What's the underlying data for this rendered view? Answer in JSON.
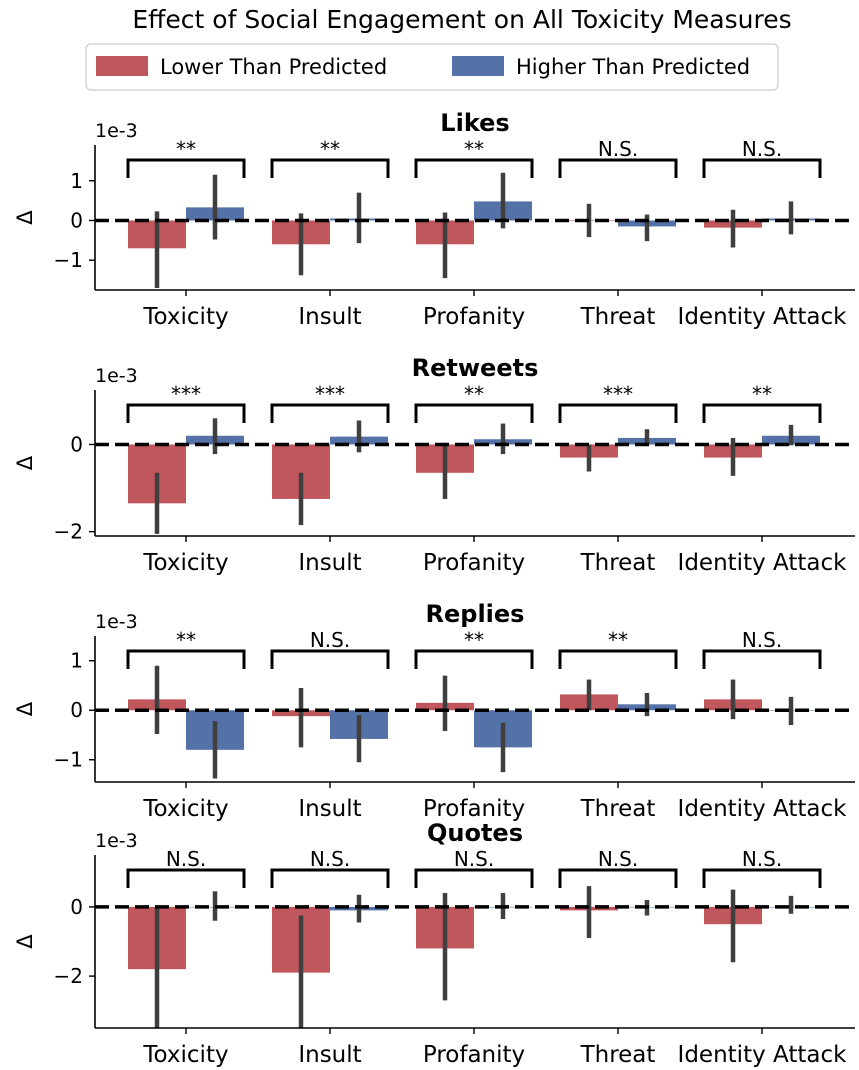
{
  "colors": {
    "lower": "#c0575d",
    "higher": "#5572a8",
    "errorbar": "#3f3f3f"
  },
  "chart_data": {
    "type": "bar",
    "title": "Effect of Social Engagement on All Toxicity Measures",
    "legend": {
      "placement": "top-center",
      "entries": [
        "Lower Than Predicted",
        "Higher Than Predicted"
      ]
    },
    "ylabel": "Δ",
    "y_offset_label": "1e-3",
    "categories": [
      "Toxicity",
      "Insult",
      "Profanity",
      "Threat",
      "Identity Attack"
    ],
    "panels": [
      {
        "title": "Likes",
        "ylim": [
          -1.75,
          1.9
        ],
        "yticks": [
          -1,
          0,
          1
        ],
        "ytick_labels": [
          "−1",
          "0",
          "1"
        ],
        "series": [
          {
            "name": "Lower Than Predicted",
            "values": [
              -0.7,
              -0.6,
              -0.6,
              0.0,
              -0.18
            ],
            "err_low": [
              -1.7,
              -1.38,
              -1.45,
              -0.42,
              -0.68
            ],
            "err_high": [
              0.23,
              0.18,
              0.2,
              0.42,
              0.27
            ]
          },
          {
            "name": "Higher Than Predicted",
            "values": [
              0.33,
              0.05,
              0.48,
              -0.15,
              0.05
            ],
            "err_low": [
              -0.48,
              -0.57,
              -0.2,
              -0.52,
              -0.35
            ],
            "err_high": [
              1.15,
              0.7,
              1.2,
              0.15,
              0.48
            ]
          }
        ],
        "significance": [
          "**",
          "**",
          "**",
          "N.S.",
          "N.S."
        ]
      },
      {
        "title": "Retweets",
        "ylim": [
          -2.1,
          1.25
        ],
        "yticks": [
          -2,
          0
        ],
        "ytick_labels": [
          "−2",
          "0"
        ],
        "series": [
          {
            "name": "Lower Than Predicted",
            "values": [
              -1.35,
              -1.25,
              -0.65,
              -0.3,
              -0.3
            ],
            "err_low": [
              -2.05,
              -1.85,
              -1.25,
              -0.62,
              -0.72
            ],
            "err_high": [
              -0.65,
              -0.65,
              -0.02,
              0.0,
              0.15
            ]
          },
          {
            "name": "Higher Than Predicted",
            "values": [
              0.2,
              0.18,
              0.12,
              0.15,
              0.2
            ],
            "err_low": [
              -0.22,
              -0.18,
              -0.22,
              -0.02,
              -0.02
            ],
            "err_high": [
              0.6,
              0.55,
              0.48,
              0.35,
              0.45
            ]
          }
        ],
        "significance": [
          "***",
          "***",
          "**",
          "***",
          "**"
        ]
      },
      {
        "title": "Replies",
        "ylim": [
          -1.45,
          1.5
        ],
        "yticks": [
          -1,
          0,
          1
        ],
        "ytick_labels": [
          "−1",
          "0",
          "1"
        ],
        "series": [
          {
            "name": "Lower Than Predicted",
            "values": [
              0.22,
              -0.12,
              0.15,
              0.32,
              0.22
            ],
            "err_low": [
              -0.48,
              -0.75,
              -0.42,
              0.0,
              -0.18
            ],
            "err_high": [
              0.9,
              0.45,
              0.7,
              0.62,
              0.62
            ]
          },
          {
            "name": "Higher Than Predicted",
            "values": [
              -0.8,
              -0.58,
              -0.75,
              0.12,
              0.0
            ],
            "err_low": [
              -1.38,
              -1.05,
              -1.25,
              -0.12,
              -0.3
            ],
            "err_high": [
              -0.22,
              -0.1,
              -0.25,
              0.35,
              0.27
            ]
          }
        ],
        "significance": [
          "**",
          "N.S.",
          "**",
          "**",
          "N.S."
        ]
      },
      {
        "title": "Quotes",
        "ylim": [
          -3.5,
          1.5
        ],
        "yticks": [
          -2,
          0
        ],
        "ytick_labels": [
          "−2",
          "0"
        ],
        "series": [
          {
            "name": "Lower Than Predicted",
            "values": [
              -1.8,
              -1.9,
              -1.2,
              -0.1,
              -0.5
            ],
            "err_low": [
              -3.5,
              -3.5,
              -2.7,
              -0.9,
              -1.6
            ],
            "err_high": [
              0.0,
              -0.25,
              0.4,
              0.6,
              0.5
            ]
          },
          {
            "name": "Higher Than Predicted",
            "values": [
              0.0,
              -0.1,
              0.0,
              0.0,
              0.0
            ],
            "err_low": [
              -0.4,
              -0.45,
              -0.35,
              -0.25,
              -0.2
            ],
            "err_high": [
              0.45,
              0.35,
              0.4,
              0.2,
              0.32
            ]
          }
        ],
        "significance": [
          "N.S.",
          "N.S.",
          "N.S.",
          "N.S.",
          "N.S."
        ]
      }
    ]
  }
}
